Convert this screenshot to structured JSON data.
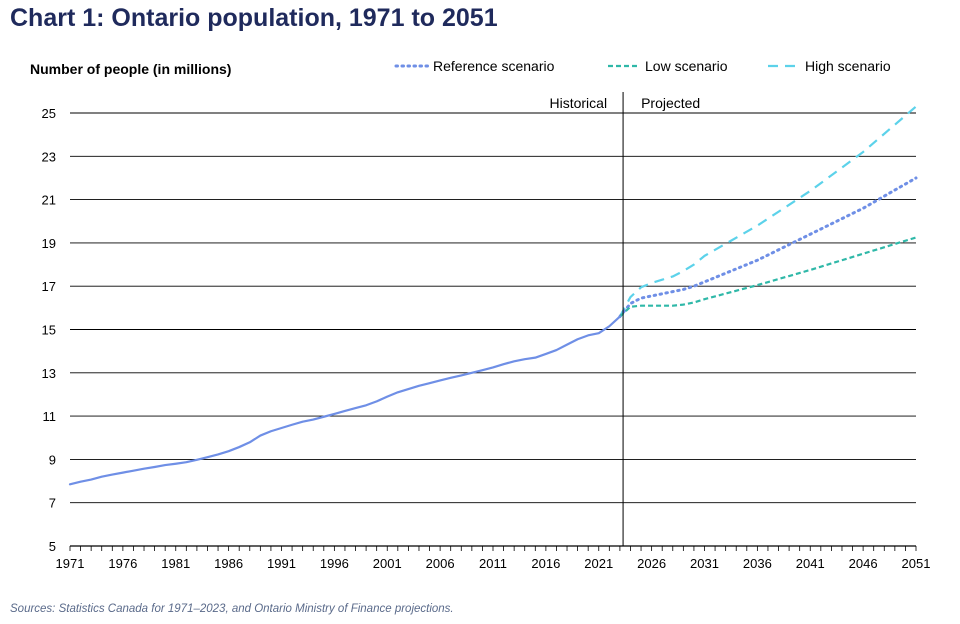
{
  "title": "Chart 1: Ontario population, 1971 to 2051",
  "source": "Sources: Statistics Canada for 1971–2023, and Ontario Ministry of Finance projections.",
  "colors": {
    "historical": "#6f8fe6",
    "reference": "#6f8fe6",
    "low": "#2fb8a8",
    "high": "#5cd2ea",
    "grid": "#000000",
    "title": "#1f2a5c"
  },
  "chart_data": {
    "type": "line",
    "ylabel": "Number of people (in millions)",
    "xlim": [
      1971,
      2051
    ],
    "ylim": [
      5,
      25
    ],
    "yticks": [
      5,
      7,
      9,
      11,
      13,
      15,
      17,
      19,
      21,
      23,
      25
    ],
    "xticks": [
      1971,
      1976,
      1981,
      1986,
      1991,
      1996,
      2001,
      2006,
      2011,
      2016,
      2021,
      2026,
      2031,
      2036,
      2041,
      2046,
      2051
    ],
    "divider_year": 2023.3,
    "divider_labels": {
      "left": "Historical",
      "right": "Projected"
    },
    "legend": [
      {
        "key": "reference",
        "label": "Reference scenario"
      },
      {
        "key": "low",
        "label": "Low scenario"
      },
      {
        "key": "high",
        "label": "High scenario"
      }
    ],
    "series": [
      {
        "key": "historical",
        "name": "Historical",
        "style": "solid",
        "x": [
          1971,
          1972,
          1973,
          1974,
          1975,
          1976,
          1977,
          1978,
          1979,
          1980,
          1981,
          1982,
          1983,
          1984,
          1985,
          1986,
          1987,
          1988,
          1989,
          1990,
          1991,
          1992,
          1993,
          1994,
          1995,
          1996,
          1997,
          1998,
          1999,
          2000,
          2001,
          2002,
          2003,
          2004,
          2005,
          2006,
          2007,
          2008,
          2009,
          2010,
          2011,
          2012,
          2013,
          2014,
          2015,
          2016,
          2017,
          2018,
          2019,
          2020,
          2021,
          2022,
          2023
        ],
        "y": [
          7.85,
          7.97,
          8.07,
          8.2,
          8.3,
          8.39,
          8.48,
          8.57,
          8.65,
          8.74,
          8.8,
          8.87,
          8.98,
          9.1,
          9.23,
          9.38,
          9.57,
          9.79,
          10.1,
          10.3,
          10.45,
          10.6,
          10.74,
          10.84,
          10.97,
          11.1,
          11.24,
          11.37,
          11.5,
          11.68,
          11.9,
          12.1,
          12.25,
          12.4,
          12.52,
          12.65,
          12.77,
          12.88,
          13.0,
          13.12,
          13.25,
          13.4,
          13.53,
          13.63,
          13.7,
          13.87,
          14.05,
          14.3,
          14.55,
          14.73,
          14.83,
          15.15,
          15.6
        ]
      },
      {
        "key": "reference",
        "name": "Reference scenario",
        "style": "dotted",
        "x": [
          2023,
          2024,
          2025,
          2026,
          2027,
          2028,
          2029,
          2030,
          2031,
          2036,
          2041,
          2046,
          2051
        ],
        "y": [
          15.6,
          16.2,
          16.45,
          16.55,
          16.65,
          16.75,
          16.85,
          17.0,
          17.2,
          18.2,
          19.4,
          20.6,
          22.0
        ]
      },
      {
        "key": "low",
        "name": "Low scenario",
        "style": "dashed",
        "x": [
          2023,
          2024,
          2025,
          2026,
          2027,
          2028,
          2029,
          2030,
          2031,
          2036,
          2041,
          2046,
          2051
        ],
        "y": [
          15.6,
          16.05,
          16.1,
          16.1,
          16.1,
          16.1,
          16.15,
          16.25,
          16.4,
          17.05,
          17.75,
          18.5,
          19.25
        ]
      },
      {
        "key": "high",
        "name": "High scenario",
        "style": "longdash",
        "x": [
          2023,
          2024,
          2025,
          2026,
          2027,
          2028,
          2029,
          2030,
          2031,
          2036,
          2041,
          2046,
          2051
        ],
        "y": [
          15.6,
          16.5,
          16.95,
          17.15,
          17.3,
          17.45,
          17.7,
          18.0,
          18.4,
          19.8,
          21.4,
          23.2,
          25.3
        ]
      }
    ]
  }
}
